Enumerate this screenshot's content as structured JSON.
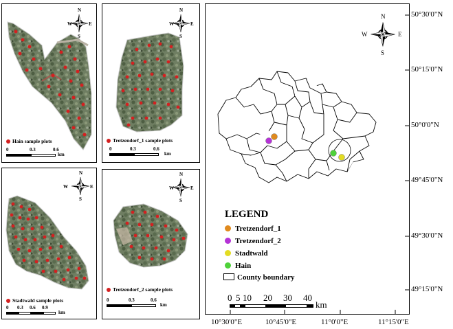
{
  "panels": {
    "hain": {
      "caption": "Hain sample plots",
      "scale_labels": [
        "0",
        "0.3",
        "0.6"
      ],
      "unit": "km"
    },
    "tretzendorf1": {
      "caption": "Tretzendorf_1 sample plots",
      "scale_labels": [
        "0",
        "0.3",
        "0.6"
      ],
      "unit": "km"
    },
    "stadtwald": {
      "caption": "Stadtwald sample plots",
      "scale_labels": [
        "0",
        "0.3",
        "0.6",
        "0.9"
      ],
      "unit": "km"
    },
    "tretzendorf2": {
      "caption": "Tretzendorf_2 sample plots",
      "scale_labels": [
        "0",
        "0.3",
        "0.6"
      ],
      "unit": "km"
    }
  },
  "compass": {
    "n": "N",
    "s": "S",
    "e": "E",
    "w": "W"
  },
  "main_map": {
    "lat_labels": [
      "50°30'0\"N",
      "50°15'0\"N",
      "50°0'0\"N",
      "49°45'0\"N",
      "49°30'0\"N",
      "49°15'0\"N"
    ],
    "lon_labels": [
      "10°30'0\"E",
      "10°45'0\"E",
      "11°0'0\"E",
      "11°15'0\"E"
    ],
    "legend": {
      "title": "LEGEND",
      "items": [
        {
          "label": "Tretzendorf_1",
          "color": "#e08a1e"
        },
        {
          "label": "Tretzendorf_2",
          "color": "#b533d6"
        },
        {
          "label": "Stadtwald",
          "color": "#e3dc22"
        },
        {
          "label": "Hain",
          "color": "#4fd23a"
        },
        {
          "label": "County boundary",
          "color": "#ffffff"
        }
      ]
    },
    "scale_labels": [
      "0",
      "5",
      "10",
      "20",
      "30",
      "40"
    ],
    "scale_unit": "km"
  }
}
